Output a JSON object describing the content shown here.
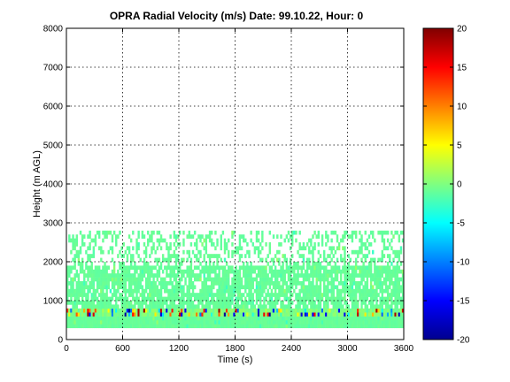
{
  "chart_data": {
    "type": "heatmap",
    "title": "OPRA Radial Velocity (m/s)  Date: 99.10.22, Hour: 0",
    "xlabel": "Time (s)",
    "ylabel": "Height (m AGL)",
    "xlim": [
      0,
      3600
    ],
    "ylim": [
      0,
      8000
    ],
    "xticks": [
      0,
      600,
      1200,
      1800,
      2400,
      3000,
      3600
    ],
    "yticks": [
      0,
      1000,
      2000,
      3000,
      4000,
      5000,
      6000,
      7000,
      8000
    ],
    "xtick_labels": [
      "0",
      "600",
      "1200",
      "1800",
      "2400",
      "3000",
      "3600"
    ],
    "ytick_labels": [
      "0",
      "1000",
      "2000",
      "3000",
      "4000",
      "5000",
      "6000",
      "7000",
      "8000"
    ],
    "grid": true,
    "colorbar": {
      "range": [
        -20,
        20
      ],
      "ticks": [
        -20,
        -15,
        -10,
        -5,
        0,
        5,
        10,
        15,
        20
      ],
      "tick_labels": [
        "-20",
        "-15",
        "-10",
        "-5",
        "0",
        "5",
        "10",
        "15",
        "20"
      ],
      "colormap": "jet",
      "position": "right"
    },
    "layers": [
      {
        "height_range": [
          300,
          600
        ],
        "velocity": -1,
        "coverage": "continuous"
      },
      {
        "height_range": [
          600,
          800
        ],
        "velocity": 0,
        "coverage": "continuous",
        "note_values": "mixed strong positive and negative velocities (±20)"
      },
      {
        "height_range": [
          800,
          1900
        ],
        "velocity": -1,
        "coverage": "mostly continuous with gaps"
      },
      {
        "height_range": [
          1900,
          2800
        ],
        "velocity": -1,
        "coverage": "sparse patches"
      }
    ]
  },
  "colors": {
    "background": "#ffffff",
    "frame": "#000000",
    "no_data": "#ffffff"
  }
}
